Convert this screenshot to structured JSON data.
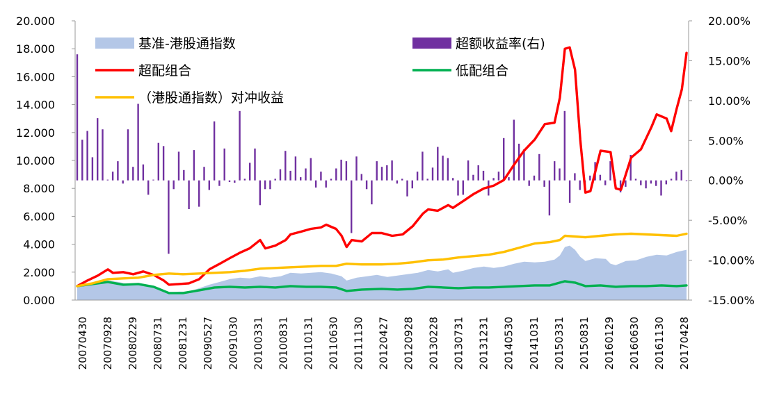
{
  "chart_data": {
    "type": "combo",
    "title": "",
    "xlabel": "",
    "ylabel": "",
    "grid": false,
    "legend_position": "top",
    "y_left": {
      "range": [
        0,
        20
      ],
      "ticks": [
        "0.000",
        "2.000",
        "4.000",
        "6.000",
        "8.000",
        "10.000",
        "12.000",
        "14.000",
        "16.000",
        "18.000",
        "20.000"
      ]
    },
    "y_right": {
      "range": [
        -15,
        20
      ],
      "unit": "%",
      "ticks": [
        "-15.00%",
        "-10.00%",
        "-5.00%",
        "0.00%",
        "5.00%",
        "10.00%",
        "15.00%",
        "20.00%"
      ]
    },
    "x_tick_labels": [
      "20070430",
      "20070928",
      "20080229",
      "20080731",
      "20081231",
      "20090527",
      "20091030",
      "20100331",
      "20100831",
      "20110131",
      "20110630",
      "20111130",
      "20120427",
      "20120928",
      "20130228",
      "20130731",
      "20131231",
      "20140530",
      "20141031",
      "20150331",
      "20150831",
      "20160129",
      "20160630",
      "20161130",
      "20170428"
    ],
    "x_start": "2007-04-30",
    "x_end": "2017-04-28",
    "series": [
      {
        "name": "基准-港股通指数",
        "type": "area",
        "axis": "left",
        "color": "#b4c7e7",
        "points": [
          [
            "2007-04-30",
            1.0
          ],
          [
            "2007-06-30",
            1.05
          ],
          [
            "2007-08-31",
            1.15
          ],
          [
            "2007-10-31",
            1.4
          ],
          [
            "2007-12-31",
            1.3
          ],
          [
            "2008-02-29",
            1.15
          ],
          [
            "2008-04-30",
            1.2
          ],
          [
            "2008-06-30",
            1.05
          ],
          [
            "2008-08-31",
            0.9
          ],
          [
            "2008-10-31",
            0.55
          ],
          [
            "2008-12-31",
            0.6
          ],
          [
            "2009-02-27",
            0.6
          ],
          [
            "2009-04-30",
            0.85
          ],
          [
            "2009-06-30",
            1.1
          ],
          [
            "2009-08-31",
            1.3
          ],
          [
            "2009-10-30",
            1.5
          ],
          [
            "2009-12-31",
            1.6
          ],
          [
            "2010-02-26",
            1.55
          ],
          [
            "2010-04-30",
            1.7
          ],
          [
            "2010-06-30",
            1.6
          ],
          [
            "2010-08-31",
            1.7
          ],
          [
            "2010-10-29",
            1.95
          ],
          [
            "2010-12-31",
            1.9
          ],
          [
            "2011-02-28",
            1.95
          ],
          [
            "2011-04-29",
            2.0
          ],
          [
            "2011-06-30",
            1.9
          ],
          [
            "2011-08-31",
            1.7
          ],
          [
            "2011-09-30",
            1.4
          ],
          [
            "2011-11-30",
            1.6
          ],
          [
            "2012-01-31",
            1.7
          ],
          [
            "2012-03-30",
            1.8
          ],
          [
            "2012-05-31",
            1.65
          ],
          [
            "2012-07-31",
            1.75
          ],
          [
            "2012-09-28",
            1.85
          ],
          [
            "2012-11-30",
            1.95
          ],
          [
            "2013-01-31",
            2.15
          ],
          [
            "2013-03-29",
            2.05
          ],
          [
            "2013-05-31",
            2.2
          ],
          [
            "2013-06-28",
            1.95
          ],
          [
            "2013-08-30",
            2.1
          ],
          [
            "2013-10-31",
            2.3
          ],
          [
            "2013-12-31",
            2.4
          ],
          [
            "2014-02-28",
            2.3
          ],
          [
            "2014-04-30",
            2.4
          ],
          [
            "2014-06-30",
            2.6
          ],
          [
            "2014-08-29",
            2.75
          ],
          [
            "2014-10-31",
            2.7
          ],
          [
            "2014-12-31",
            2.75
          ],
          [
            "2015-02-27",
            2.9
          ],
          [
            "2015-03-31",
            3.2
          ],
          [
            "2015-04-30",
            3.8
          ],
          [
            "2015-05-29",
            3.9
          ],
          [
            "2015-06-30",
            3.6
          ],
          [
            "2015-07-31",
            3.1
          ],
          [
            "2015-08-31",
            2.8
          ],
          [
            "2015-10-30",
            3.0
          ],
          [
            "2015-12-31",
            2.95
          ],
          [
            "2016-01-29",
            2.6
          ],
          [
            "2016-02-29",
            2.5
          ],
          [
            "2016-04-29",
            2.8
          ],
          [
            "2016-06-30",
            2.85
          ],
          [
            "2016-08-31",
            3.1
          ],
          [
            "2016-10-31",
            3.25
          ],
          [
            "2016-12-30",
            3.2
          ],
          [
            "2017-02-28",
            3.45
          ],
          [
            "2017-04-28",
            3.6
          ]
        ]
      },
      {
        "name": "超额收益率(右)",
        "type": "bar",
        "axis": "right",
        "color": "#7030a0",
        "values": [
          15.8,
          5.1,
          6.2,
          2.9,
          7.8,
          6.4,
          0.1,
          1.1,
          2.4,
          -0.4,
          6.4,
          1.7,
          9.6,
          2.0,
          -1.8,
          0.1,
          4.7,
          4.3,
          -9.2,
          -1.1,
          3.6,
          1.3,
          -3.6,
          3.8,
          -3.3,
          1.7,
          -1.2,
          7.4,
          -0.7,
          4.0,
          -0.2,
          -0.3,
          8.7,
          0.2,
          2.2,
          4.0,
          -3.1,
          -1.1,
          -1.1,
          0.2,
          1.4,
          3.7,
          1.2,
          3.0,
          0.4,
          1.5,
          2.8,
          -0.9,
          1.1,
          -0.9,
          0.2,
          1.5,
          2.6,
          2.4,
          -6.6,
          3.0,
          0.8,
          -1.1,
          -3.0,
          2.4,
          1.7,
          1.9,
          2.5,
          -0.4,
          0.2,
          -2.0,
          -1.0,
          1.1,
          3.6,
          0.2,
          1.6,
          4.2,
          3.1,
          2.8,
          0.3,
          -1.9,
          -1.8,
          2.5,
          0.7,
          1.9,
          1.2,
          -1.9,
          0.3,
          1.1,
          5.3,
          0.4,
          7.6,
          4.6,
          3.9,
          -0.7,
          0.6,
          3.3,
          -0.8,
          -4.4,
          2.4,
          1.5,
          8.7,
          -2.8,
          0.9,
          -1.2,
          -0.7,
          0.6,
          2.3,
          0.7,
          -0.6,
          2.4,
          0.1,
          -1.5,
          -0.8,
          3.2,
          0.2,
          -0.6,
          -1.0,
          -0.4,
          -0.7,
          -1.9,
          -0.5,
          0.2,
          1.1,
          1.3,
          -0.1
        ],
        "x_start": "2007-04-30",
        "x_end": "2017-04-28"
      },
      {
        "name": "超配组合",
        "type": "line",
        "axis": "left",
        "color": "#ff0000",
        "points": [
          [
            "2007-04-30",
            1.0
          ],
          [
            "2007-06-30",
            1.4
          ],
          [
            "2007-08-31",
            1.75
          ],
          [
            "2007-10-31",
            2.2
          ],
          [
            "2007-11-30",
            1.95
          ],
          [
            "2008-01-31",
            2.0
          ],
          [
            "2008-03-31",
            1.85
          ],
          [
            "2008-05-30",
            2.05
          ],
          [
            "2008-07-31",
            1.8
          ],
          [
            "2008-09-30",
            1.4
          ],
          [
            "2008-10-31",
            1.1
          ],
          [
            "2008-12-31",
            1.15
          ],
          [
            "2009-02-27",
            1.2
          ],
          [
            "2009-04-30",
            1.5
          ],
          [
            "2009-06-30",
            2.2
          ],
          [
            "2009-08-31",
            2.6
          ],
          [
            "2009-10-30",
            3.0
          ],
          [
            "2009-12-31",
            3.4
          ],
          [
            "2010-02-26",
            3.7
          ],
          [
            "2010-04-30",
            4.3
          ],
          [
            "2010-05-31",
            3.7
          ],
          [
            "2010-07-30",
            3.9
          ],
          [
            "2010-09-30",
            4.3
          ],
          [
            "2010-10-29",
            4.7
          ],
          [
            "2010-12-31",
            4.9
          ],
          [
            "2011-02-28",
            5.1
          ],
          [
            "2011-04-29",
            5.2
          ],
          [
            "2011-05-31",
            5.4
          ],
          [
            "2011-07-29",
            5.1
          ],
          [
            "2011-08-31",
            4.6
          ],
          [
            "2011-09-30",
            3.8
          ],
          [
            "2011-10-31",
            4.3
          ],
          [
            "2011-12-30",
            4.2
          ],
          [
            "2012-02-29",
            4.8
          ],
          [
            "2012-04-27",
            4.8
          ],
          [
            "2012-06-29",
            4.6
          ],
          [
            "2012-08-31",
            4.7
          ],
          [
            "2012-10-31",
            5.3
          ],
          [
            "2012-12-31",
            6.2
          ],
          [
            "2013-01-31",
            6.5
          ],
          [
            "2013-03-29",
            6.4
          ],
          [
            "2013-05-31",
            6.8
          ],
          [
            "2013-06-28",
            6.6
          ],
          [
            "2013-08-30",
            7.1
          ],
          [
            "2013-10-31",
            7.6
          ],
          [
            "2013-12-31",
            8.0
          ],
          [
            "2014-02-28",
            8.2
          ],
          [
            "2014-04-30",
            8.6
          ],
          [
            "2014-06-30",
            9.7
          ],
          [
            "2014-08-29",
            10.7
          ],
          [
            "2014-10-31",
            11.5
          ],
          [
            "2014-12-31",
            12.6
          ],
          [
            "2015-02-27",
            12.7
          ],
          [
            "2015-03-31",
            14.5
          ],
          [
            "2015-04-30",
            18.0
          ],
          [
            "2015-05-29",
            18.1
          ],
          [
            "2015-06-30",
            16.5
          ],
          [
            "2015-07-31",
            11.5
          ],
          [
            "2015-08-31",
            7.7
          ],
          [
            "2015-09-30",
            7.8
          ],
          [
            "2015-11-30",
            10.7
          ],
          [
            "2016-01-29",
            10.6
          ],
          [
            "2016-02-29",
            8.0
          ],
          [
            "2016-03-31",
            7.9
          ],
          [
            "2016-05-31",
            10.2
          ],
          [
            "2016-07-29",
            10.8
          ],
          [
            "2016-09-30",
            12.4
          ],
          [
            "2016-10-31",
            13.3
          ],
          [
            "2016-12-30",
            13.0
          ],
          [
            "2017-01-26",
            12.1
          ],
          [
            "2017-02-28",
            13.7
          ],
          [
            "2017-03-31",
            15.1
          ],
          [
            "2017-04-28",
            17.7
          ]
        ]
      },
      {
        "name": "低配组合",
        "type": "line",
        "axis": "left",
        "color": "#00b050",
        "points": [
          [
            "2007-04-30",
            1.0
          ],
          [
            "2007-07-31",
            1.15
          ],
          [
            "2007-10-31",
            1.3
          ],
          [
            "2008-01-31",
            1.1
          ],
          [
            "2008-04-30",
            1.15
          ],
          [
            "2008-07-31",
            0.95
          ],
          [
            "2008-10-31",
            0.5
          ],
          [
            "2009-01-23",
            0.5
          ],
          [
            "2009-04-30",
            0.7
          ],
          [
            "2009-07-31",
            0.9
          ],
          [
            "2009-10-30",
            0.95
          ],
          [
            "2010-01-29",
            0.9
          ],
          [
            "2010-04-30",
            0.95
          ],
          [
            "2010-07-30",
            0.9
          ],
          [
            "2010-10-29",
            1.0
          ],
          [
            "2011-01-31",
            0.95
          ],
          [
            "2011-04-29",
            0.95
          ],
          [
            "2011-07-29",
            0.9
          ],
          [
            "2011-09-30",
            0.65
          ],
          [
            "2011-12-30",
            0.75
          ],
          [
            "2012-04-27",
            0.8
          ],
          [
            "2012-07-31",
            0.75
          ],
          [
            "2012-10-31",
            0.8
          ],
          [
            "2013-01-31",
            0.95
          ],
          [
            "2013-04-30",
            0.9
          ],
          [
            "2013-07-31",
            0.85
          ],
          [
            "2013-10-31",
            0.9
          ],
          [
            "2014-01-30",
            0.9
          ],
          [
            "2014-04-30",
            0.95
          ],
          [
            "2014-07-31",
            1.0
          ],
          [
            "2014-10-31",
            1.05
          ],
          [
            "2015-01-30",
            1.05
          ],
          [
            "2015-04-30",
            1.35
          ],
          [
            "2015-06-30",
            1.25
          ],
          [
            "2015-08-31",
            1.0
          ],
          [
            "2015-11-30",
            1.05
          ],
          [
            "2016-02-29",
            0.95
          ],
          [
            "2016-05-31",
            1.0
          ],
          [
            "2016-08-31",
            1.0
          ],
          [
            "2016-11-30",
            1.05
          ],
          [
            "2017-02-28",
            1.0
          ],
          [
            "2017-04-28",
            1.05
          ]
        ]
      },
      {
        "name": "（港股通指数）对冲收益",
        "type": "line",
        "axis": "left",
        "color": "#ffc000",
        "points": [
          [
            "2007-04-30",
            1.0
          ],
          [
            "2007-07-31",
            1.2
          ],
          [
            "2007-10-31",
            1.5
          ],
          [
            "2008-01-31",
            1.55
          ],
          [
            "2008-04-30",
            1.6
          ],
          [
            "2008-07-31",
            1.8
          ],
          [
            "2008-10-31",
            1.9
          ],
          [
            "2009-01-23",
            1.85
          ],
          [
            "2009-04-30",
            1.9
          ],
          [
            "2009-07-31",
            1.95
          ],
          [
            "2009-10-30",
            2.0
          ],
          [
            "2010-01-29",
            2.1
          ],
          [
            "2010-04-30",
            2.25
          ],
          [
            "2010-07-30",
            2.3
          ],
          [
            "2010-10-29",
            2.35
          ],
          [
            "2011-01-31",
            2.4
          ],
          [
            "2011-04-29",
            2.45
          ],
          [
            "2011-07-29",
            2.45
          ],
          [
            "2011-09-30",
            2.6
          ],
          [
            "2011-12-30",
            2.55
          ],
          [
            "2012-04-27",
            2.55
          ],
          [
            "2012-07-31",
            2.6
          ],
          [
            "2012-10-31",
            2.7
          ],
          [
            "2013-01-31",
            2.85
          ],
          [
            "2013-04-30",
            2.9
          ],
          [
            "2013-07-31",
            3.05
          ],
          [
            "2013-10-31",
            3.15
          ],
          [
            "2014-01-30",
            3.25
          ],
          [
            "2014-04-30",
            3.45
          ],
          [
            "2014-07-31",
            3.75
          ],
          [
            "2014-10-31",
            4.05
          ],
          [
            "2015-01-30",
            4.15
          ],
          [
            "2015-03-31",
            4.3
          ],
          [
            "2015-04-30",
            4.6
          ],
          [
            "2015-06-30",
            4.55
          ],
          [
            "2015-08-31",
            4.5
          ],
          [
            "2015-11-30",
            4.6
          ],
          [
            "2016-02-29",
            4.7
          ],
          [
            "2016-05-31",
            4.75
          ],
          [
            "2016-08-31",
            4.7
          ],
          [
            "2016-11-30",
            4.65
          ],
          [
            "2017-02-28",
            4.6
          ],
          [
            "2017-04-28",
            4.75
          ]
        ]
      }
    ]
  }
}
